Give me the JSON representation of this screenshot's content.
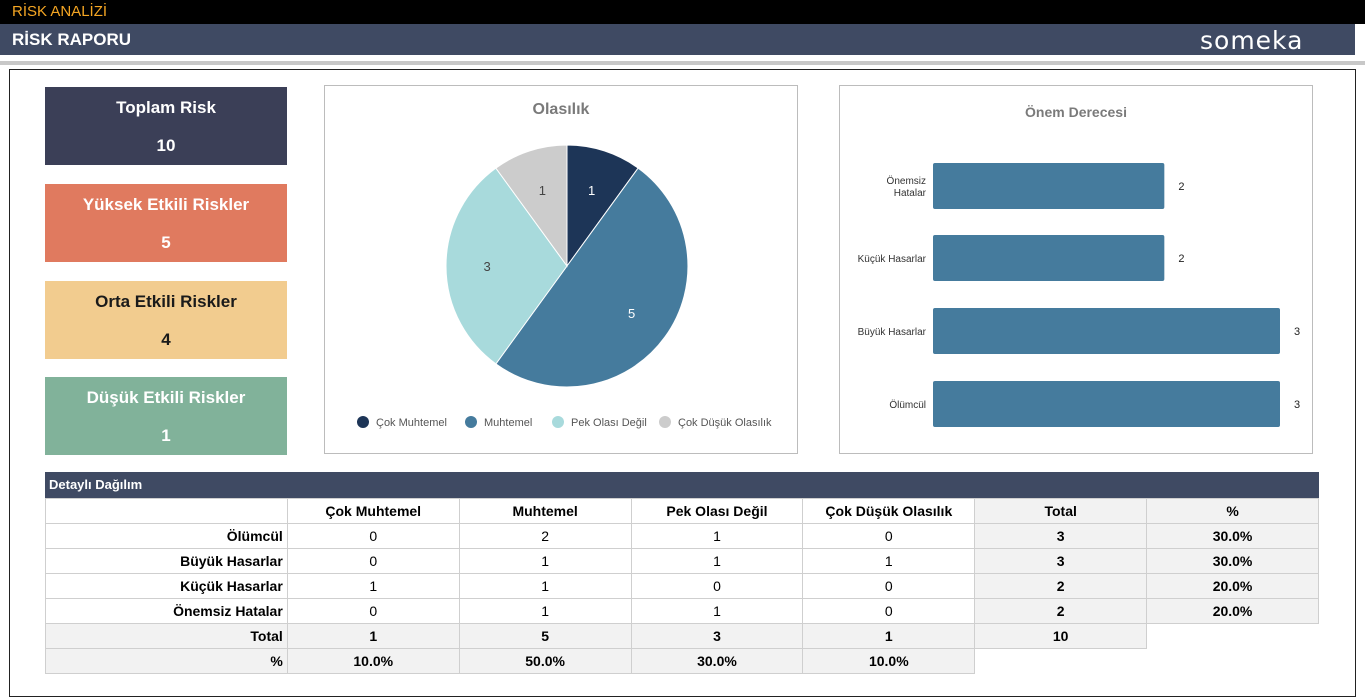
{
  "header": {
    "app_title": "RİSK ANALİZİ",
    "page_title": "RİSK RAPORU",
    "logo": "someka"
  },
  "summary_cards": [
    {
      "label": "Toplam Risk",
      "value": "10",
      "color": "#3b3f57"
    },
    {
      "label": "Yüksek Etkili Riskler",
      "value": "5",
      "color": "#e07a5f"
    },
    {
      "label": "Orta Etkili Riskler",
      "value": "4",
      "color": "#f2cc8f"
    },
    {
      "label": "Düşük Etkili Riskler",
      "value": "1",
      "color": "#81b29a"
    }
  ],
  "chart_data": [
    {
      "type": "pie",
      "title": "Olasılık",
      "labels": [
        "Çok Muhtemel",
        "Muhtemel",
        "Pek Olası Değil",
        "Çok Düşük Olasılık"
      ],
      "values": [
        1,
        5,
        3,
        1
      ],
      "colors": [
        "#1d3557",
        "#457b9d",
        "#a8dadc",
        "#cccccc"
      ],
      "legend": "bottom"
    },
    {
      "type": "bar",
      "orientation": "horizontal",
      "title": "Önem Derecesi",
      "categories": [
        "Önemsiz Hatalar",
        "Küçük Hasarlar",
        "Büyük Hasarlar",
        "Ölümcül"
      ],
      "values": [
        2,
        2,
        3,
        3
      ],
      "color": "#457b9d",
      "xlim": [
        0,
        3
      ],
      "grid": false
    }
  ],
  "detail_table": {
    "title": "Detaylı Dağılım",
    "columns": [
      "",
      "Çok Muhtemel",
      "Muhtemel",
      "Pek Olası Değil",
      "Çok Düşük Olasılık",
      "Total",
      "%"
    ],
    "rows": [
      [
        "Ölümcül",
        "0",
        "2",
        "1",
        "0",
        "3",
        "30.0%"
      ],
      [
        "Büyük Hasarlar",
        "0",
        "1",
        "1",
        "1",
        "3",
        "30.0%"
      ],
      [
        "Küçük Hasarlar",
        "1",
        "1",
        "0",
        "0",
        "2",
        "20.0%"
      ],
      [
        "Önemsiz Hatalar",
        "0",
        "1",
        "1",
        "0",
        "2",
        "20.0%"
      ]
    ],
    "total_row": [
      "Total",
      "1",
      "5",
      "3",
      "1",
      "10"
    ],
    "pct_row": [
      "%",
      "10.0%",
      "50.0%",
      "30.0%",
      "10.0%"
    ]
  }
}
